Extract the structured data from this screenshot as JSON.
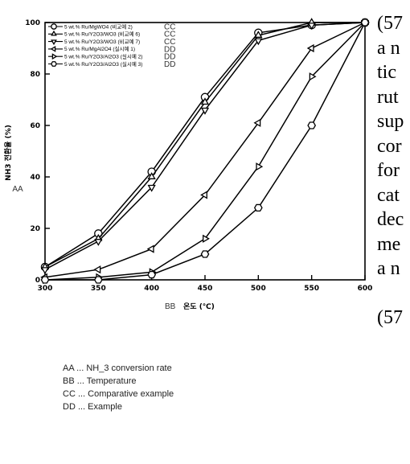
{
  "chart_data": {
    "type": "line",
    "title": "",
    "xlabel": "온도 (℃)",
    "xlabel_tag": "BB",
    "ylabel": "NH3 전환율 (%)",
    "ylabel_tag": "AA",
    "x": [
      300,
      350,
      400,
      450,
      500,
      550,
      600
    ],
    "xlim": [
      300,
      600
    ],
    "ylim": [
      0,
      100
    ],
    "yticks": [
      0,
      20,
      40,
      60,
      80,
      100
    ],
    "grid": false,
    "legend_position": "top-left",
    "series": [
      {
        "name": "5 wt.% Ru/MgWO4 (비교예 2)",
        "tag": "CC",
        "marker": "circle",
        "values": [
          5,
          18,
          42,
          71,
          96,
          99,
          100
        ]
      },
      {
        "name": "5 wt.% Ru/Y2O3/WO3 (비교예 6)",
        "tag": "CC",
        "marker": "triangle-up",
        "values": [
          5,
          16,
          40,
          69,
          95,
          100,
          100
        ]
      },
      {
        "name": "5 wt.% Ru/Y2O3/WO3 (비교예 7)",
        "tag": "CC",
        "marker": "triangle-down",
        "values": [
          4,
          15,
          36,
          66,
          93,
          99,
          100
        ]
      },
      {
        "name": "5 wt.% Ru/MgAl2O4 (실시예 1)",
        "tag": "DD",
        "marker": "triangle-left",
        "values": [
          1,
          4,
          12,
          33,
          61,
          90,
          100
        ]
      },
      {
        "name": "5 wt.% Ru/Y2O3/Al2O3 (실시예 2)",
        "tag": "DD",
        "marker": "triangle-right",
        "values": [
          0,
          1,
          3,
          16,
          44,
          79,
          100
        ]
      },
      {
        "name": "5 wt.% Ru/Y2O3/Al2O3 (실시예 3)",
        "tag": "DD",
        "marker": "hexagon",
        "values": [
          0,
          0,
          2,
          10,
          28,
          60,
          100
        ]
      }
    ]
  },
  "glossary": [
    "AA ... NH_3 conversion rate",
    "BB ... Temperature",
    "CC ... Comparative example",
    "DD ... Example"
  ],
  "side_text": [
    "(57",
    "a n",
    "tic",
    "rut",
    "sup",
    "cor",
    "for",
    "cat",
    "dec",
    "me",
    "a n",
    "(57"
  ]
}
